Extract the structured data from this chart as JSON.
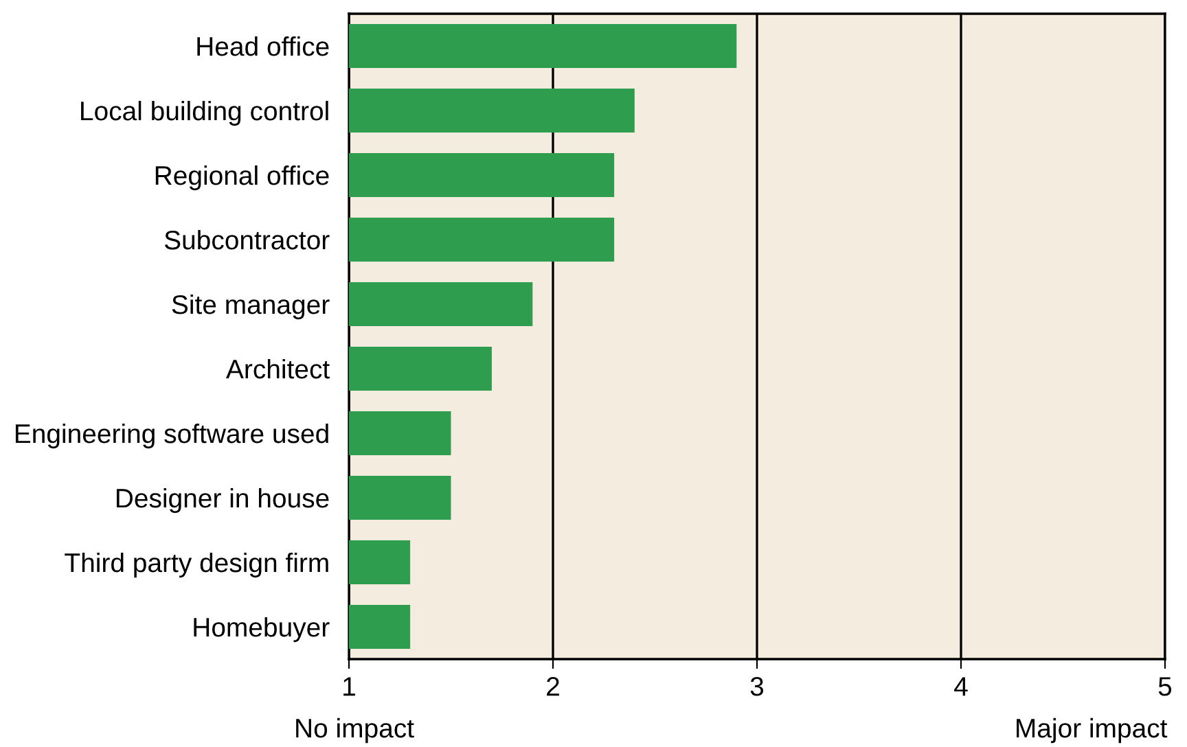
{
  "chart_data": {
    "type": "bar",
    "orientation": "horizontal",
    "categories": [
      "Head office",
      "Local building control",
      "Regional office",
      "Subcontractor",
      "Site manager",
      "Architect",
      "Engineering software used",
      "Designer in house",
      "Third party design firm",
      "Homebuyer"
    ],
    "values": [
      2.9,
      2.4,
      2.3,
      2.3,
      1.9,
      1.7,
      1.5,
      1.5,
      1.3,
      1.3
    ],
    "color": "#2e9e4e",
    "xlim": [
      1,
      5
    ],
    "xticks": [
      1,
      2,
      3,
      4,
      5
    ],
    "grid": "x",
    "annotations": [
      "No impact",
      "Major impact"
    ]
  }
}
